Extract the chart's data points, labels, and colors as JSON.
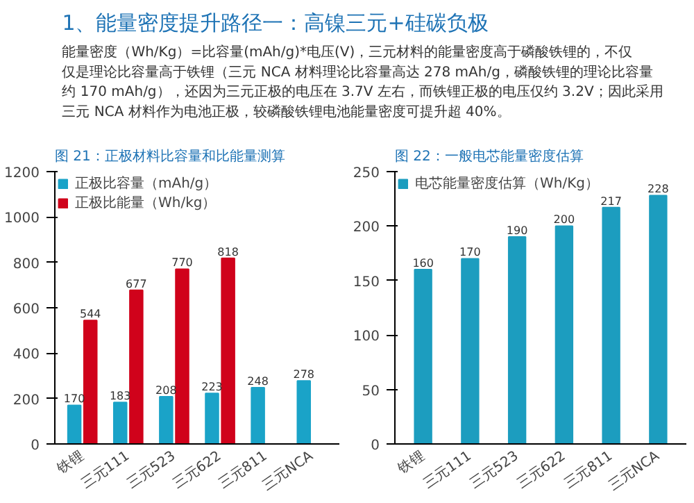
{
  "chart_data": [
    {
      "type": "other",
      "title": "1、能量密度提升路径一：高镍三元+硅碳负极",
      "annotations": [
        "能量密度（Wh/Kg）=比容量(mAh/g)*电压(V)，三元材料的能量密度高于磷酸铁锂的，不仅",
        "仅是理论比容量高于铁锂（三元 NCA 材料理论比容量高达 278 mAh/g，磷酸铁锂的理论比容量",
        "约 170 mAh/g），还因为三元正极的电压在 3.7V 左右，而铁锂正极的电压仅约 3.2V；因此采用",
        "三元 NCA 材料作为电池正极，较磷酸铁锂电池能量密度可提升超 40%。"
      ]
    },
    {
      "type": "bar",
      "title": "图 21：正极材料比容量和比能量测算",
      "categories": [
        "铁锂",
        "三元111",
        "三元523",
        "三元622",
        "三元811",
        "三元NCA"
      ],
      "series": [
        {
          "name": "正极比容量（mAh/g）",
          "color": "#1aa3c8",
          "values": [
            170,
            183,
            208,
            223,
            248,
            278
          ]
        },
        {
          "name": "正极比能量（Wh/kg）",
          "color": "#d0021b",
          "values": [
            544,
            677,
            770,
            818,
            null,
            null
          ]
        }
      ],
      "ylim": [
        0,
        1200
      ],
      "yticks": [
        0,
        200,
        400,
        600,
        800,
        1000,
        1200
      ],
      "data_labels": true,
      "legend": "top left",
      "grid": false
    },
    {
      "type": "bar",
      "title": "图 22：一般电芯能量密度估算",
      "categories": [
        "铁锂",
        "三元111",
        "三元523",
        "三元622",
        "三元811",
        "三元NCA"
      ],
      "series": [
        {
          "name": "电芯能量密度估算（Wh/Kg）",
          "color": "#1c9dbf",
          "values": [
            160,
            170,
            190,
            200,
            217,
            228
          ]
        }
      ],
      "ylim": [
        0,
        250
      ],
      "yticks": [
        0,
        50,
        100,
        150,
        200,
        250
      ],
      "data_labels": true,
      "legend": "top left",
      "grid": false
    }
  ]
}
